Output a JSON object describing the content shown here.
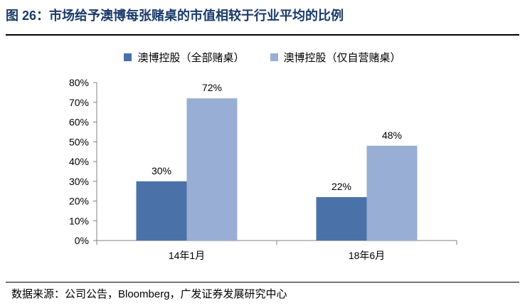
{
  "header": {
    "title": "图 26：市场给予澳博每张赌桌的市值相较于行业平均的比例"
  },
  "footer": {
    "source": "数据来源：公司公告，Bloomberg，广发证券发展研究中心"
  },
  "colors": {
    "series1": "#4a72a8",
    "series2": "#98aed4",
    "title": "#1a3a6b"
  },
  "chart_data": {
    "type": "bar",
    "categories": [
      "14年1月",
      "18年6月"
    ],
    "series": [
      {
        "name": "澳博控股（全部赌桌）",
        "values": [
          30,
          22
        ]
      },
      {
        "name": "澳博控股（仅自营赌桌）",
        "values": [
          72,
          48
        ]
      }
    ],
    "ylim": [
      0,
      80
    ],
    "yticks": [
      "0%",
      "10%",
      "20%",
      "30%",
      "40%",
      "50%",
      "60%",
      "70%",
      "80%"
    ],
    "data_labels": [
      [
        "30%",
        "22%"
      ],
      [
        "72%",
        "48%"
      ]
    ],
    "legend_position": "top",
    "grid": false
  }
}
